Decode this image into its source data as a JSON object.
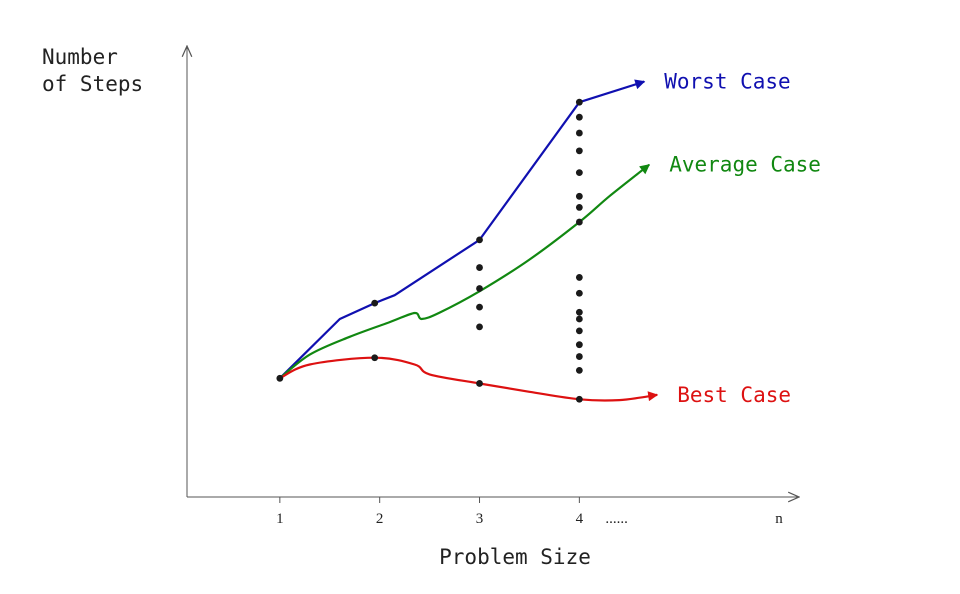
{
  "chart_data": {
    "type": "line",
    "ylabel": [
      "Number",
      "of Steps"
    ],
    "xlabel": "Problem Size",
    "x_ticks": [
      {
        "label": "1",
        "value": 1
      },
      {
        "label": "2",
        "value": 2
      },
      {
        "label": "3",
        "value": 3
      },
      {
        "label": "4",
        "value": 4
      },
      {
        "label": "n",
        "value": 6
      }
    ],
    "x_ellipsis": "......",
    "xlim": [
      0.07,
      6.2
    ],
    "ylim": [
      0,
      11.4
    ],
    "grid": false,
    "series": [
      {
        "name": "Worst Case",
        "color": "#1010b0",
        "points": [
          [
            1,
            3.0
          ],
          [
            1.6,
            4.5
          ],
          [
            1.95,
            4.9
          ],
          [
            2.15,
            5.1
          ],
          [
            3,
            6.5
          ],
          [
            4,
            9.98
          ],
          [
            4.65,
            10.5
          ]
        ]
      },
      {
        "name": "Average Case",
        "color": "#118811",
        "points": [
          [
            1,
            3.0
          ],
          [
            1.3,
            3.6
          ],
          [
            1.7,
            4.05
          ],
          [
            2.1,
            4.42
          ],
          [
            2.35,
            4.65
          ],
          [
            2.42,
            4.5
          ],
          [
            2.6,
            4.66
          ],
          [
            3,
            5.2
          ],
          [
            3.5,
            6.0
          ],
          [
            4,
            6.95
          ],
          [
            4.3,
            7.6
          ],
          [
            4.7,
            8.4
          ]
        ]
      },
      {
        "name": "Best Case",
        "color": "#dd1111",
        "points": [
          [
            1,
            3.0
          ],
          [
            1.3,
            3.35
          ],
          [
            1.95,
            3.52
          ],
          [
            2.35,
            3.35
          ],
          [
            2.5,
            3.1
          ],
          [
            3,
            2.87
          ],
          [
            3.5,
            2.66
          ],
          [
            4,
            2.47
          ],
          [
            4.4,
            2.45
          ],
          [
            4.78,
            2.58
          ]
        ]
      }
    ],
    "observations": [
      {
        "x": 1,
        "y": [
          3.0
        ]
      },
      {
        "x": 1.95,
        "y": [
          3.52,
          4.9
        ]
      },
      {
        "x": 3,
        "y": [
          2.87,
          4.3,
          4.8,
          5.27,
          5.8,
          6.5
        ]
      },
      {
        "x": 4,
        "y": [
          2.47,
          3.2,
          3.55,
          3.85,
          4.2,
          4.5,
          4.67,
          5.15,
          5.55,
          6.95,
          7.32,
          7.6,
          8.2,
          8.75,
          9.2,
          9.6,
          9.98
        ]
      }
    ]
  }
}
